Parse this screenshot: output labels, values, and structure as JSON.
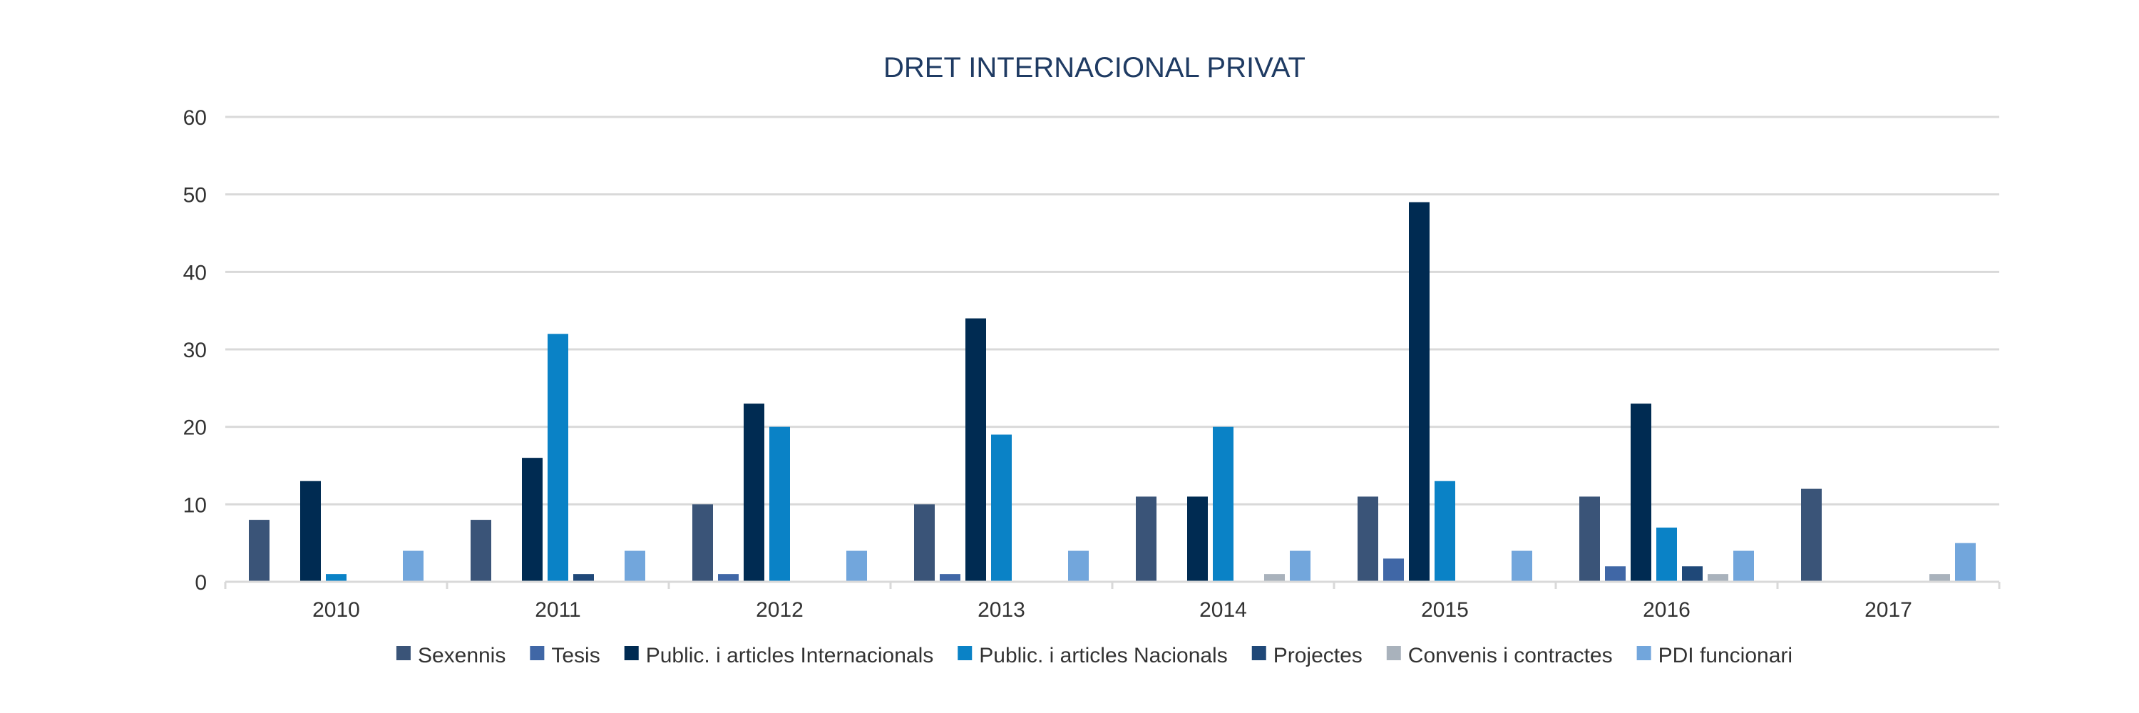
{
  "chart_data": {
    "type": "bar",
    "title": "DRET INTERNACIONAL PRIVAT",
    "categories": [
      "2010",
      "2011",
      "2012",
      "2013",
      "2014",
      "2015",
      "2016",
      "2017"
    ],
    "ylim": [
      0,
      60
    ],
    "yticks": [
      0,
      10,
      20,
      30,
      40,
      50,
      60
    ],
    "grid": true,
    "legend_position": "bottom",
    "series": [
      {
        "name": "Sexennis",
        "color": "#3a5478",
        "values": [
          8,
          8,
          10,
          10,
          11,
          11,
          11,
          12
        ]
      },
      {
        "name": "Tesis",
        "color": "#4067a6",
        "values": [
          0,
          0,
          1,
          1,
          0,
          3,
          2,
          0
        ]
      },
      {
        "name": "Public. i articles Internacionals",
        "color": "#002b52",
        "values": [
          13,
          16,
          23,
          34,
          11,
          49,
          23,
          0
        ]
      },
      {
        "name": "Public. i articles Nacionals",
        "color": "#0a82c6",
        "values": [
          1,
          32,
          20,
          19,
          20,
          13,
          7,
          0
        ]
      },
      {
        "name": "Projectes",
        "color": "#1f4878",
        "values": [
          0,
          1,
          0,
          0,
          0,
          0,
          2,
          0
        ]
      },
      {
        "name": "Convenis i contractes",
        "color": "#a9b2bc",
        "values": [
          0,
          0,
          0,
          0,
          1,
          0,
          1,
          1
        ]
      },
      {
        "name": "PDI funcionari",
        "color": "#72a6dc",
        "values": [
          4,
          4,
          4,
          4,
          4,
          4,
          4,
          5
        ]
      }
    ]
  }
}
